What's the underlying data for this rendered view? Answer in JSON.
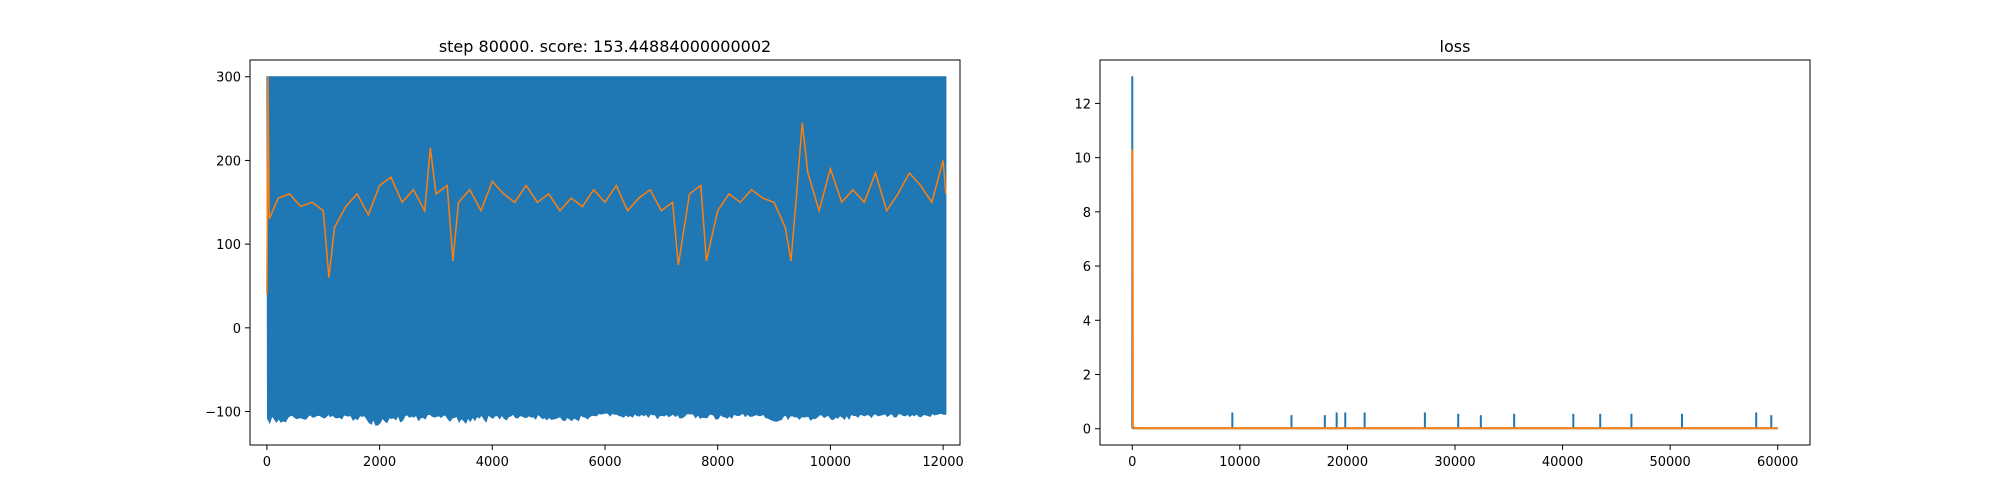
{
  "chart_data": [
    {
      "type": "line",
      "title": "step 80000. score: 153.44884000000002",
      "xlabel": "",
      "ylabel": "",
      "xlim": [
        -300,
        12300
      ],
      "ylim": [
        -140,
        320
      ],
      "xticks": [
        0,
        2000,
        4000,
        6000,
        8000,
        10000,
        12000
      ],
      "yticks": [
        -100,
        0,
        100,
        200,
        300
      ],
      "xtick_labels": [
        "0",
        "2000",
        "4000",
        "6000",
        "8000",
        "10000",
        "12000"
      ],
      "ytick_labels": [
        "−100",
        "0",
        "100",
        "200",
        "300"
      ],
      "grid": false,
      "series": [
        {
          "color": "#1f77b4",
          "description": "per-episode score oscillating densely between about -100 and 300",
          "envelope_upper": 300,
          "envelope_lower_x": [
            0,
            500,
            1000,
            1500,
            2000,
            2500,
            3000,
            3500,
            4000,
            4500,
            5000,
            5500,
            6000,
            6500,
            7000,
            7500,
            8000,
            8500,
            9000,
            9500,
            10000,
            10500,
            11000,
            11500,
            12000
          ],
          "envelope_lower": [
            -115,
            -112,
            -108,
            -110,
            -118,
            -112,
            -110,
            -115,
            -112,
            -108,
            -110,
            -112,
            -105,
            -108,
            -110,
            -108,
            -110,
            -106,
            -112,
            -110,
            -112,
            -108,
            -106,
            -108,
            -105
          ],
          "x_end": 12050
        },
        {
          "color": "#ff7f0e",
          "description": "moving average of score",
          "x": [
            0,
            20,
            40,
            200,
            400,
            600,
            800,
            1000,
            1100,
            1200,
            1400,
            1600,
            1800,
            2000,
            2200,
            2400,
            2600,
            2800,
            2900,
            3000,
            3200,
            3300,
            3400,
            3600,
            3800,
            4000,
            4200,
            4400,
            4600,
            4800,
            5000,
            5200,
            5400,
            5600,
            5800,
            6000,
            6200,
            6400,
            6600,
            6800,
            7000,
            7200,
            7300,
            7500,
            7700,
            7800,
            8000,
            8200,
            8400,
            8600,
            8800,
            9000,
            9200,
            9300,
            9400,
            9500,
            9600,
            9800,
            10000,
            10200,
            10400,
            10600,
            10800,
            11000,
            11200,
            11400,
            11600,
            11800,
            12000,
            12050
          ],
          "y": [
            40,
            300,
            130,
            155,
            160,
            145,
            150,
            140,
            60,
            120,
            145,
            160,
            135,
            170,
            180,
            150,
            165,
            140,
            215,
            160,
            170,
            80,
            150,
            165,
            140,
            175,
            160,
            150,
            170,
            150,
            160,
            140,
            155,
            145,
            165,
            150,
            170,
            140,
            155,
            165,
            140,
            150,
            75,
            160,
            170,
            80,
            140,
            160,
            150,
            165,
            155,
            150,
            120,
            80,
            160,
            245,
            185,
            140,
            190,
            150,
            165,
            150,
            185,
            140,
            160,
            185,
            170,
            150,
            200,
            160
          ]
        }
      ]
    },
    {
      "type": "line",
      "title": "loss",
      "xlabel": "",
      "ylabel": "",
      "xlim": [
        -3000,
        63000
      ],
      "ylim": [
        -0.6,
        13.6
      ],
      "xticks": [
        0,
        10000,
        20000,
        30000,
        40000,
        50000,
        60000
      ],
      "yticks": [
        0,
        2,
        4,
        6,
        8,
        10,
        12
      ],
      "xtick_labels": [
        "0",
        "10000",
        "20000",
        "30000",
        "40000",
        "50000",
        "60000"
      ],
      "ytick_labels": [
        "0",
        "2",
        "4",
        "6",
        "8",
        "10",
        "12"
      ],
      "grid": false,
      "series": [
        {
          "color": "#1f77b4",
          "description": "loss with initial spike and occasional small spikes",
          "baseline": 0.02,
          "x_end": 60000,
          "initial_spike": {
            "x": 0,
            "y": 13.0
          },
          "spikes_x": [
            9300,
            14800,
            17900,
            19000,
            19800,
            21600,
            27200,
            30300,
            32400,
            35500,
            41000,
            43500,
            46400,
            51100,
            58000,
            59400
          ],
          "spikes_y": [
            0.6,
            0.5,
            0.5,
            0.6,
            0.6,
            0.6,
            0.6,
            0.55,
            0.5,
            0.55,
            0.55,
            0.55,
            0.55,
            0.55,
            0.6,
            0.5
          ]
        },
        {
          "color": "#ff7f0e",
          "description": "smoothed loss",
          "x": [
            0,
            30,
            60,
            200,
            1000,
            60000
          ],
          "y": [
            10.3,
            8.5,
            0.05,
            0.03,
            0.02,
            0.02
          ]
        }
      ]
    }
  ]
}
